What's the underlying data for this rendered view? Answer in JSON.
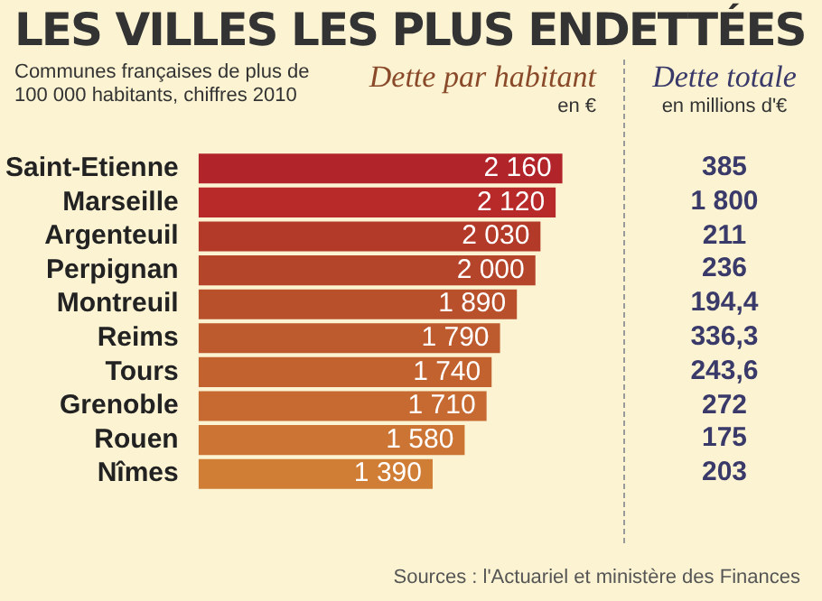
{
  "chart_data": [
    {
      "type": "bar",
      "orientation": "horizontal",
      "title": "LES VILLES LES PLUS ENDETTÉES",
      "subtitle": "Communes françaises de plus de 100 000 habitants, chiffres 2010",
      "xlabel": "Dette par habitant",
      "annotations": [
        "en €",
        "Sources : l'Actuariel et ministère des Finances"
      ],
      "categories": [
        "Saint-Etienne",
        "Marseille",
        "Argenteuil",
        "Perpignan",
        "Montreuil",
        "Reims",
        "Tours",
        "Grenoble",
        "Rouen",
        "Nîmes"
      ],
      "values": [
        2160,
        2120,
        2030,
        2000,
        1890,
        1790,
        1740,
        1710,
        1580,
        1390
      ],
      "value_labels": [
        "2 160",
        "2 120",
        "2 030",
        "2 000",
        "1 890",
        "1 790",
        "1 740",
        "1 710",
        "1 580",
        "1 390"
      ],
      "colors": [
        "#b0242a",
        "#b82a2a",
        "#b33a28",
        "#b5452a",
        "#b9502c",
        "#bd5a2e",
        "#c2622f",
        "#c66a31",
        "#cc7434",
        "#d07d36"
      ]
    },
    {
      "type": "other",
      "title": "Dette totale",
      "subtitle": "en millions d'€",
      "annotations": [
        "385",
        "1 800",
        "211",
        "236",
        "194,4",
        "336,3",
        "243,6",
        "272",
        "175",
        "203"
      ]
    }
  ]
}
